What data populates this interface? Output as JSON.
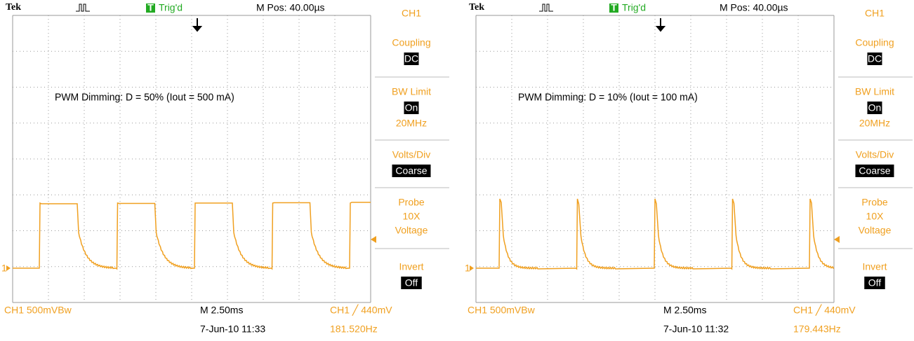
{
  "panels": [
    {
      "header": {
        "brand": "Tek",
        "trigger_letter": "T",
        "trigger_status": "Trig'd",
        "position": "M Pos: 40.00µs"
      },
      "annotation": "PWM Dimming: D = 50% (Iout = 500 mA)",
      "ground_marker": "1",
      "menu": {
        "channel": "CH1",
        "items": [
          {
            "label": "Coupling",
            "value": "DC"
          },
          {
            "label": "BW Limit",
            "value": "On",
            "extra": "20MHz"
          },
          {
            "label": "Volts/Div",
            "value": "Coarse"
          },
          {
            "label": "Probe",
            "lines": [
              "10X",
              "Voltage"
            ]
          },
          {
            "label": "Invert",
            "value": "Off"
          }
        ]
      },
      "footer": {
        "channel_scale": "CH1  500mVBw",
        "timebase": "M 2.50ms",
        "trigger": "CH1 ╱ 440mV",
        "datetime": "7-Jun-10 11:33",
        "frequency": "181.520Hz"
      }
    },
    {
      "header": {
        "brand": "Tek",
        "trigger_letter": "T",
        "trigger_status": "Trig'd",
        "position": "M Pos: 40.00µs"
      },
      "annotation": "PWM Dimming: D = 10% (Iout = 100 mA)",
      "ground_marker": "1",
      "menu": {
        "channel": "CH1",
        "items": [
          {
            "label": "Coupling",
            "value": "DC"
          },
          {
            "label": "BW Limit",
            "value": "On",
            "extra": "20MHz"
          },
          {
            "label": "Volts/Div",
            "value": "Coarse"
          },
          {
            "label": "Probe",
            "lines": [
              "10X",
              "Voltage"
            ]
          },
          {
            "label": "Invert",
            "value": "Off"
          }
        ]
      },
      "footer": {
        "channel_scale": "CH1  500mVBw",
        "timebase": "M 2.50ms",
        "trigger": "CH1 ╱ 440mV",
        "datetime": "7-Jun-10 11:32",
        "frequency": "179.443Hz"
      }
    }
  ]
}
